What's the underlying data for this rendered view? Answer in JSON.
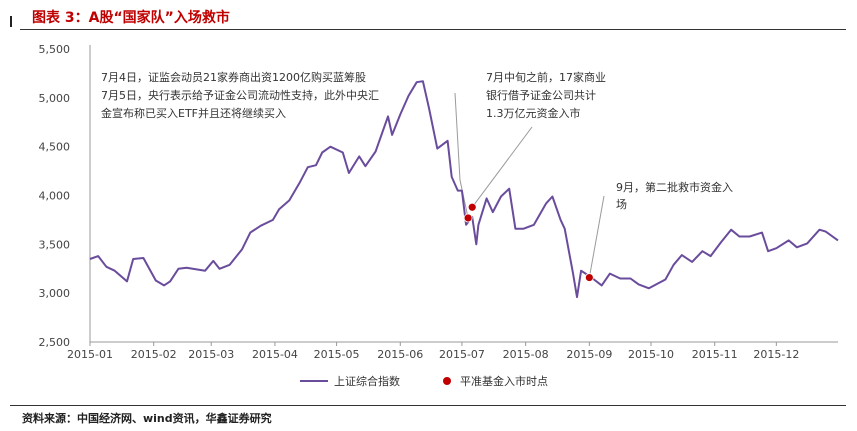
{
  "header": {
    "title": "图表 3：A股“国家队”入场救市"
  },
  "footer": {
    "source": "资料来源：中国经济网、wind资讯，华鑫证券研究"
  },
  "colors": {
    "line": "#6a4c9c",
    "marker": "#c00000",
    "leader": "#9a9a9a",
    "title": "#c00000"
  },
  "chart_data": {
    "type": "line",
    "title": "",
    "xlabel": "",
    "ylabel": "",
    "ylim": [
      2500,
      5500
    ],
    "yticks": [
      "2,500",
      "3,000",
      "3,500",
      "4,000",
      "4,500",
      "5,000",
      "5,500"
    ],
    "ytick_values": [
      2500,
      3000,
      3500,
      4000,
      4500,
      5000,
      5500
    ],
    "xticks": [
      "2015-01",
      "2015-02",
      "2015-03",
      "2015-04",
      "2015-05",
      "2015-06",
      "2015-07",
      "2015-08",
      "2015-09",
      "2015-10",
      "2015-11",
      "2015-12"
    ],
    "grid": false,
    "legend_position": "bottom",
    "series": [
      {
        "name": "上证综合指数",
        "type": "line",
        "x": [
          "2015-01-01",
          "2015-01-05",
          "2015-01-09",
          "2015-01-13",
          "2015-01-19",
          "2015-01-22",
          "2015-01-27",
          "2015-02-02",
          "2015-02-06",
          "2015-02-09",
          "2015-02-13",
          "2015-02-17",
          "2015-02-26",
          "2015-03-02",
          "2015-03-05",
          "2015-03-10",
          "2015-03-16",
          "2015-03-20",
          "2015-03-25",
          "2015-03-31",
          "2015-04-03",
          "2015-04-08",
          "2015-04-13",
          "2015-04-17",
          "2015-04-21",
          "2015-04-24",
          "2015-04-28",
          "2015-05-04",
          "2015-05-07",
          "2015-05-12",
          "2015-05-15",
          "2015-05-20",
          "2015-05-26",
          "2015-05-28",
          "2015-06-01",
          "2015-06-05",
          "2015-06-09",
          "2015-06-12",
          "2015-06-15",
          "2015-06-19",
          "2015-06-24",
          "2015-06-26",
          "2015-06-29",
          "2015-07-01",
          "2015-07-03",
          "2015-07-06",
          "2015-07-08",
          "2015-07-09",
          "2015-07-13",
          "2015-07-16",
          "2015-07-20",
          "2015-07-24",
          "2015-07-27",
          "2015-07-31",
          "2015-08-05",
          "2015-08-11",
          "2015-08-14",
          "2015-08-18",
          "2015-08-20",
          "2015-08-24",
          "2015-08-26",
          "2015-08-28",
          "2015-09-02",
          "2015-09-07",
          "2015-09-11",
          "2015-09-16",
          "2015-09-21",
          "2015-09-25",
          "2015-09-30",
          "2015-10-08",
          "2015-10-12",
          "2015-10-16",
          "2015-10-21",
          "2015-10-26",
          "2015-10-30",
          "2015-11-04",
          "2015-11-09",
          "2015-11-13",
          "2015-11-18",
          "2015-11-24",
          "2015-11-27",
          "2015-12-01",
          "2015-12-07",
          "2015-12-11",
          "2015-12-16",
          "2015-12-22",
          "2015-12-25",
          "2015-12-31"
        ],
        "values": [
          3350,
          3380,
          3270,
          3230,
          3120,
          3350,
          3360,
          3130,
          3080,
          3120,
          3250,
          3260,
          3230,
          3330,
          3250,
          3290,
          3450,
          3620,
          3690,
          3750,
          3860,
          3950,
          4130,
          4290,
          4310,
          4440,
          4500,
          4440,
          4230,
          4400,
          4300,
          4450,
          4810,
          4620,
          4830,
          5020,
          5160,
          5170,
          4890,
          4480,
          4560,
          4190,
          4050,
          4050,
          3700,
          3780,
          3500,
          3700,
          3970,
          3830,
          3990,
          4070,
          3660,
          3660,
          3700,
          3920,
          3990,
          3750,
          3660,
          3210,
          2960,
          3230,
          3160,
          3080,
          3200,
          3150,
          3150,
          3090,
          3050,
          3140,
          3290,
          3390,
          3320,
          3430,
          3380,
          3520,
          3650,
          3580,
          3580,
          3620,
          3430,
          3460,
          3540,
          3470,
          3510,
          3650,
          3630,
          3540
        ]
      },
      {
        "name": "平准基金入市时点",
        "type": "scatter",
        "x": [
          "2015-07-04",
          "2015-07-06",
          "2015-09-01"
        ],
        "values": [
          3770,
          3880,
          3160
        ]
      }
    ],
    "annotations": [
      {
        "lines": [
          "7月4日，证监会动员21家券商出资1200亿购买蓝筹股",
          "7月5日，央行表示给予证金公司流动性支持，此外中央汇",
          "金宣布称已买入ETF并且还将继续买入"
        ]
      },
      {
        "lines": [
          "7月中旬之前，17家商业",
          "银行借予证金公司共计",
          "1.3万亿元资金入市"
        ]
      },
      {
        "lines": [
          "9月，第二批救市资金入",
          "场"
        ]
      }
    ]
  }
}
